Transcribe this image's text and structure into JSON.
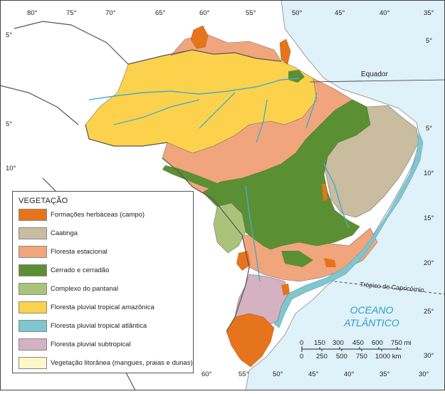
{
  "map": {
    "longitude_ticks_top": [
      "80°",
      "75°",
      "70°",
      "65°",
      "60°",
      "55°",
      "50°",
      "45°",
      "40°",
      "35°"
    ],
    "longitude_ticks_bottom": [
      "60°",
      "55°",
      "50°",
      "45°",
      "40°",
      "35°",
      "30°"
    ],
    "latitude_ticks_left": [
      "5°",
      "5°",
      "10°"
    ],
    "latitude_ticks_right": [
      "5°",
      "5°",
      "10°",
      "15°",
      "20°",
      "25°",
      "30°"
    ],
    "equator_label": "Equador",
    "tropic_label": "Trópico de Capricórnio",
    "ocean_label_line1": "OCEANO",
    "ocean_label_line2": "ATLÂNTICO",
    "colors": {
      "ocean": "#dff1f9",
      "land": "#ffffff",
      "border": "#555555"
    }
  },
  "legend": {
    "title": "VEGETAÇÃO",
    "items": [
      {
        "label": "Formações herbáceas (campo)",
        "color": "#e5741c"
      },
      {
        "label": "Caatinga",
        "color": "#c9bc9f"
      },
      {
        "label": "Floresta estacional",
        "color": "#f1a57c"
      },
      {
        "label": "Cerrado e cerradão",
        "color": "#5b8f33"
      },
      {
        "label": "Complexo do pantanal",
        "color": "#a9c47a"
      },
      {
        "label": "Floresta pluvial tropical amazônica",
        "color": "#fcd24c"
      },
      {
        "label": "Floresta pluvial tropical atlântica",
        "color": "#7fc6d0"
      },
      {
        "label": "Floresta pluvial subtropical",
        "color": "#d4b2c2"
      },
      {
        "label": "Vegetação litorânea (mangues, praias e dunas)",
        "color": "#fff7c8"
      }
    ]
  },
  "scale_bar": {
    "mi_ticks": [
      "0",
      "150",
      "300",
      "450",
      "600",
      "750 mi"
    ],
    "km_ticks": [
      "0",
      "250",
      "500",
      "750",
      "1000 km"
    ]
  }
}
